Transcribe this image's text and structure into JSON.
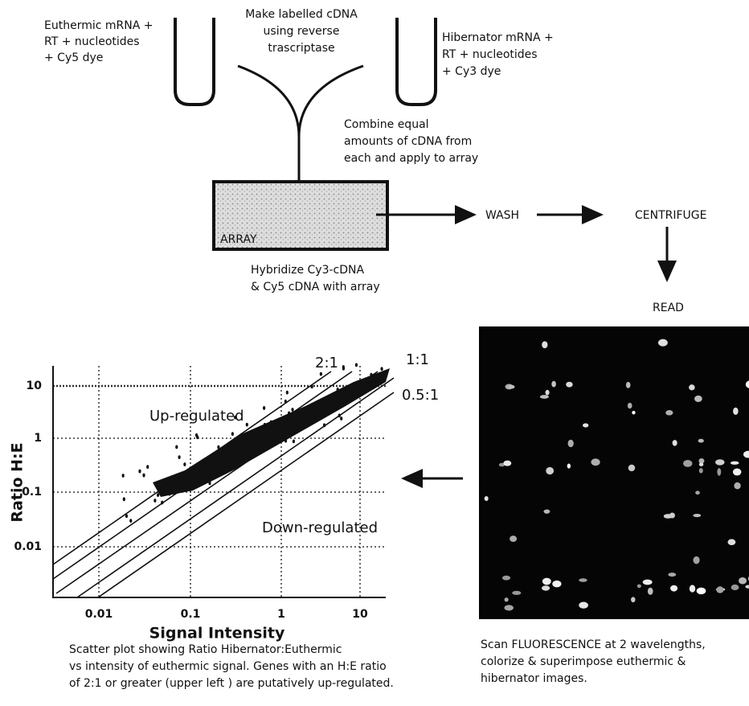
{
  "left_sample": {
    "lines": [
      "Euthermic mRNA +",
      "RT + nucleotides",
      "+ Cy5 dye"
    ]
  },
  "labelling_step": {
    "lines": [
      "Make labelled cDNA",
      "using reverse",
      "trascriptase"
    ]
  },
  "right_sample": {
    "lines": [
      "Hibernator mRNA +",
      "RT + nucleotides",
      "+ Cy3 dye"
    ]
  },
  "combine_step": {
    "lines": [
      "Combine equal",
      "amounts of cDNA from",
      "each and apply to array"
    ]
  },
  "array": {
    "label": "ARRAY",
    "caption": [
      "Hybridize Cy3-cDNA",
      "& Cy5 cDNA with array"
    ]
  },
  "process": {
    "wash": "WASH",
    "centrifuge": "CENTRIFUGE",
    "read": "READ"
  },
  "scan": {
    "caption": [
      "Scan FLUORESCENCE at 2 wavelengths,",
      "colorize & superimpose euthermic &",
      "hibernator images."
    ]
  },
  "plot": {
    "y_label": "Ratio H:E",
    "x_label": "Signal Intensity",
    "y_ticks": [
      "10",
      "1",
      "0.1",
      "0.01"
    ],
    "x_ticks": [
      "0.01",
      "0.1",
      "1",
      "10"
    ],
    "line_labels": [
      "2:1",
      "1:1",
      "0.5:1"
    ],
    "regions": {
      "up": "Up-regulated",
      "down": "Down-regulated"
    },
    "caption": [
      "Scatter plot showing Ratio Hibernator:Euthermic",
      "vs intensity of euthermic signal. Genes with an H:E ratio",
      "of 2:1 or greater (upper left ) are putatively up-regulated."
    ]
  }
}
